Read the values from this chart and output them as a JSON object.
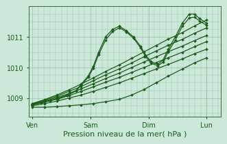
{
  "background_color": "#cce8d8",
  "plot_bg_color": "#cce8d8",
  "line_color": "#1a5c1a",
  "marker": "D",
  "markersize": 2.0,
  "linewidth": 0.9,
  "xlabel": "Pression niveau de la mer( hPa )",
  "xlabel_fontsize": 8,
  "xtick_labels": [
    "Ven",
    "Sam",
    "Dim",
    "Lun"
  ],
  "xtick_positions": [
    0.0,
    0.333,
    0.667,
    1.0
  ],
  "ytick_labels": [
    "1009",
    "1010",
    "1011"
  ],
  "ytick_positions": [
    1009,
    1010,
    1011
  ],
  "ylim": [
    1008.4,
    1012.0
  ],
  "grid_color": "#9abfaa",
  "grid_major_linewidth": 0.5,
  "grid_minor_linewidth": 0.3,
  "series": [
    {
      "comment": "straight rising line 1 - lowest slope",
      "x": [
        0.0,
        0.07,
        0.14,
        0.21,
        0.28,
        0.35,
        0.42,
        0.5,
        0.57,
        0.64,
        0.71,
        0.78,
        0.86,
        0.93,
        1.0
      ],
      "y": [
        1008.75,
        1008.82,
        1008.9,
        1009.0,
        1009.1,
        1009.22,
        1009.35,
        1009.5,
        1009.65,
        1009.8,
        1009.95,
        1010.1,
        1010.28,
        1010.45,
        1010.6
      ]
    },
    {
      "comment": "straight rising line 2",
      "x": [
        0.0,
        0.07,
        0.14,
        0.21,
        0.28,
        0.35,
        0.42,
        0.5,
        0.57,
        0.64,
        0.71,
        0.78,
        0.86,
        0.93,
        1.0
      ],
      "y": [
        1008.8,
        1008.88,
        1008.96,
        1009.08,
        1009.22,
        1009.37,
        1009.52,
        1009.68,
        1009.84,
        1010.0,
        1010.16,
        1010.32,
        1010.5,
        1010.68,
        1010.85
      ]
    },
    {
      "comment": "straight rising line 3",
      "x": [
        0.0,
        0.07,
        0.14,
        0.21,
        0.28,
        0.35,
        0.42,
        0.5,
        0.57,
        0.64,
        0.71,
        0.78,
        0.86,
        0.93,
        1.0
      ],
      "y": [
        1008.8,
        1008.9,
        1009.02,
        1009.15,
        1009.3,
        1009.47,
        1009.64,
        1009.82,
        1010.0,
        1010.18,
        1010.35,
        1010.52,
        1010.7,
        1010.88,
        1011.05
      ]
    },
    {
      "comment": "straight rising line 4",
      "x": [
        0.0,
        0.07,
        0.14,
        0.21,
        0.28,
        0.35,
        0.42,
        0.5,
        0.57,
        0.64,
        0.71,
        0.78,
        0.86,
        0.93,
        1.0
      ],
      "y": [
        1008.82,
        1008.93,
        1009.06,
        1009.22,
        1009.38,
        1009.57,
        1009.76,
        1009.96,
        1010.15,
        1010.35,
        1010.54,
        1010.73,
        1010.92,
        1011.12,
        1011.3
      ]
    },
    {
      "comment": "straight rising line 5 - steepest",
      "x": [
        0.0,
        0.07,
        0.14,
        0.21,
        0.28,
        0.35,
        0.42,
        0.5,
        0.57,
        0.64,
        0.71,
        0.78,
        0.86,
        0.93,
        1.0
      ],
      "y": [
        1008.82,
        1008.95,
        1009.1,
        1009.27,
        1009.46,
        1009.66,
        1009.87,
        1010.09,
        1010.3,
        1010.51,
        1010.72,
        1010.93,
        1011.14,
        1011.36,
        1011.55
      ]
    },
    {
      "comment": "wiggly line - goes up at Sam comes back down then up at Dim then down",
      "x": [
        0.0,
        0.05,
        0.1,
        0.15,
        0.2,
        0.25,
        0.28,
        0.32,
        0.35,
        0.38,
        0.42,
        0.46,
        0.5,
        0.54,
        0.58,
        0.62,
        0.65,
        0.68,
        0.72,
        0.75,
        0.78,
        0.82,
        0.86,
        0.9,
        0.93,
        0.96,
        1.0
      ],
      "y": [
        1008.78,
        1008.85,
        1008.92,
        1009.0,
        1009.1,
        1009.25,
        1009.45,
        1009.72,
        1010.05,
        1010.5,
        1011.0,
        1011.25,
        1011.35,
        1011.2,
        1011.0,
        1010.7,
        1010.4,
        1010.2,
        1010.1,
        1010.25,
        1010.6,
        1011.0,
        1011.45,
        1011.75,
        1011.75,
        1011.6,
        1011.45
      ]
    },
    {
      "comment": "wiggly line variant - slightly different peaks",
      "x": [
        0.0,
        0.05,
        0.1,
        0.15,
        0.2,
        0.25,
        0.28,
        0.32,
        0.35,
        0.38,
        0.42,
        0.46,
        0.5,
        0.54,
        0.58,
        0.62,
        0.65,
        0.68,
        0.72,
        0.75,
        0.78,
        0.82,
        0.86,
        0.9,
        0.93,
        0.96,
        1.0
      ],
      "y": [
        1008.78,
        1008.84,
        1008.91,
        1008.99,
        1009.09,
        1009.23,
        1009.42,
        1009.68,
        1009.98,
        1010.42,
        1010.9,
        1011.18,
        1011.3,
        1011.16,
        1010.96,
        1010.65,
        1010.35,
        1010.15,
        1010.05,
        1010.18,
        1010.52,
        1010.9,
        1011.35,
        1011.62,
        1011.65,
        1011.52,
        1011.38
      ]
    },
    {
      "comment": "low then drops - below starting from Ven",
      "x": [
        0.0,
        0.07,
        0.14,
        0.21,
        0.28,
        0.35,
        0.42,
        0.5,
        0.57,
        0.64,
        0.71,
        0.78,
        0.86,
        0.93,
        1.0
      ],
      "y": [
        1008.7,
        1008.7,
        1008.72,
        1008.75,
        1008.78,
        1008.82,
        1008.88,
        1008.96,
        1009.1,
        1009.28,
        1009.5,
        1009.72,
        1009.95,
        1010.15,
        1010.32
      ]
    }
  ]
}
